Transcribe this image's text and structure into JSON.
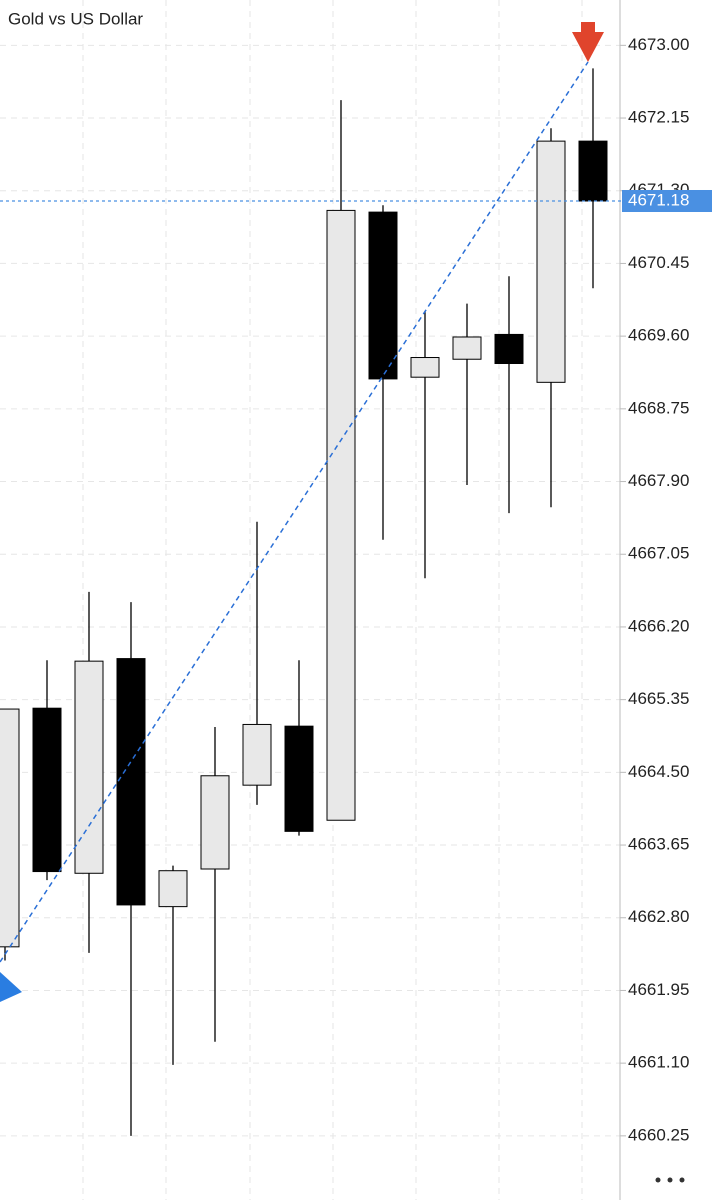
{
  "chart_data": {
    "type": "candlestick",
    "subtitle": "Gold vs US Dollar",
    "open": [
      4662.46,
      4665.25,
      4663.32,
      4665.83,
      4662.93,
      4663.37,
      4664.35,
      4665.04,
      4663.94,
      4671.05,
      4669.12,
      4669.33,
      4669.62,
      4669.06,
      4671.88
    ],
    "high": [
      4665.24,
      4665.81,
      4666.61,
      4666.49,
      4663.41,
      4665.03,
      4667.43,
      4665.81,
      4672.36,
      4671.13,
      4669.89,
      4669.98,
      4670.3,
      4672.03,
      4672.73
    ],
    "low": [
      4662.3,
      4663.24,
      4662.39,
      4660.25,
      4661.08,
      4661.35,
      4664.12,
      4663.76,
      4663.94,
      4667.22,
      4666.77,
      4667.86,
      4667.53,
      4667.6,
      4670.16
    ],
    "close": [
      4665.24,
      4663.34,
      4665.8,
      4662.95,
      4663.35,
      4664.46,
      4665.06,
      4663.81,
      4671.07,
      4669.1,
      4669.35,
      4669.59,
      4669.28,
      4671.88,
      4671.18
    ],
    "up_color": "#e8e8e8",
    "down_color": "#000000",
    "last_price": {
      "value": 4671.18,
      "label": "4671.18"
    },
    "last_price_color": "#4a90e2",
    "ylim": [
      4659.5,
      4673.53
    ],
    "yticks": [
      {
        "value": 4673.0,
        "label": "4673.00"
      },
      {
        "value": 4672.15,
        "label": "4672.15"
      },
      {
        "value": 4671.3,
        "label": "4671.30"
      },
      {
        "value": 4670.45,
        "label": "4670.45"
      },
      {
        "value": 4669.6,
        "label": "4669.60"
      },
      {
        "value": 4668.75,
        "label": "4668.75"
      },
      {
        "value": 4667.9,
        "label": "4667.90"
      },
      {
        "value": 4667.05,
        "label": "4667.05"
      },
      {
        "value": 4666.2,
        "label": "4666.20"
      },
      {
        "value": 4665.35,
        "label": "4665.35"
      },
      {
        "value": 4664.5,
        "label": "4664.50"
      },
      {
        "value": 4663.65,
        "label": "4663.65"
      },
      {
        "value": 4662.8,
        "label": "4662.80"
      },
      {
        "value": 4661.95,
        "label": "4661.95"
      },
      {
        "value": 4661.1,
        "label": "4661.10"
      },
      {
        "value": 4660.25,
        "label": "4660.25"
      }
    ],
    "grid": true
  }
}
